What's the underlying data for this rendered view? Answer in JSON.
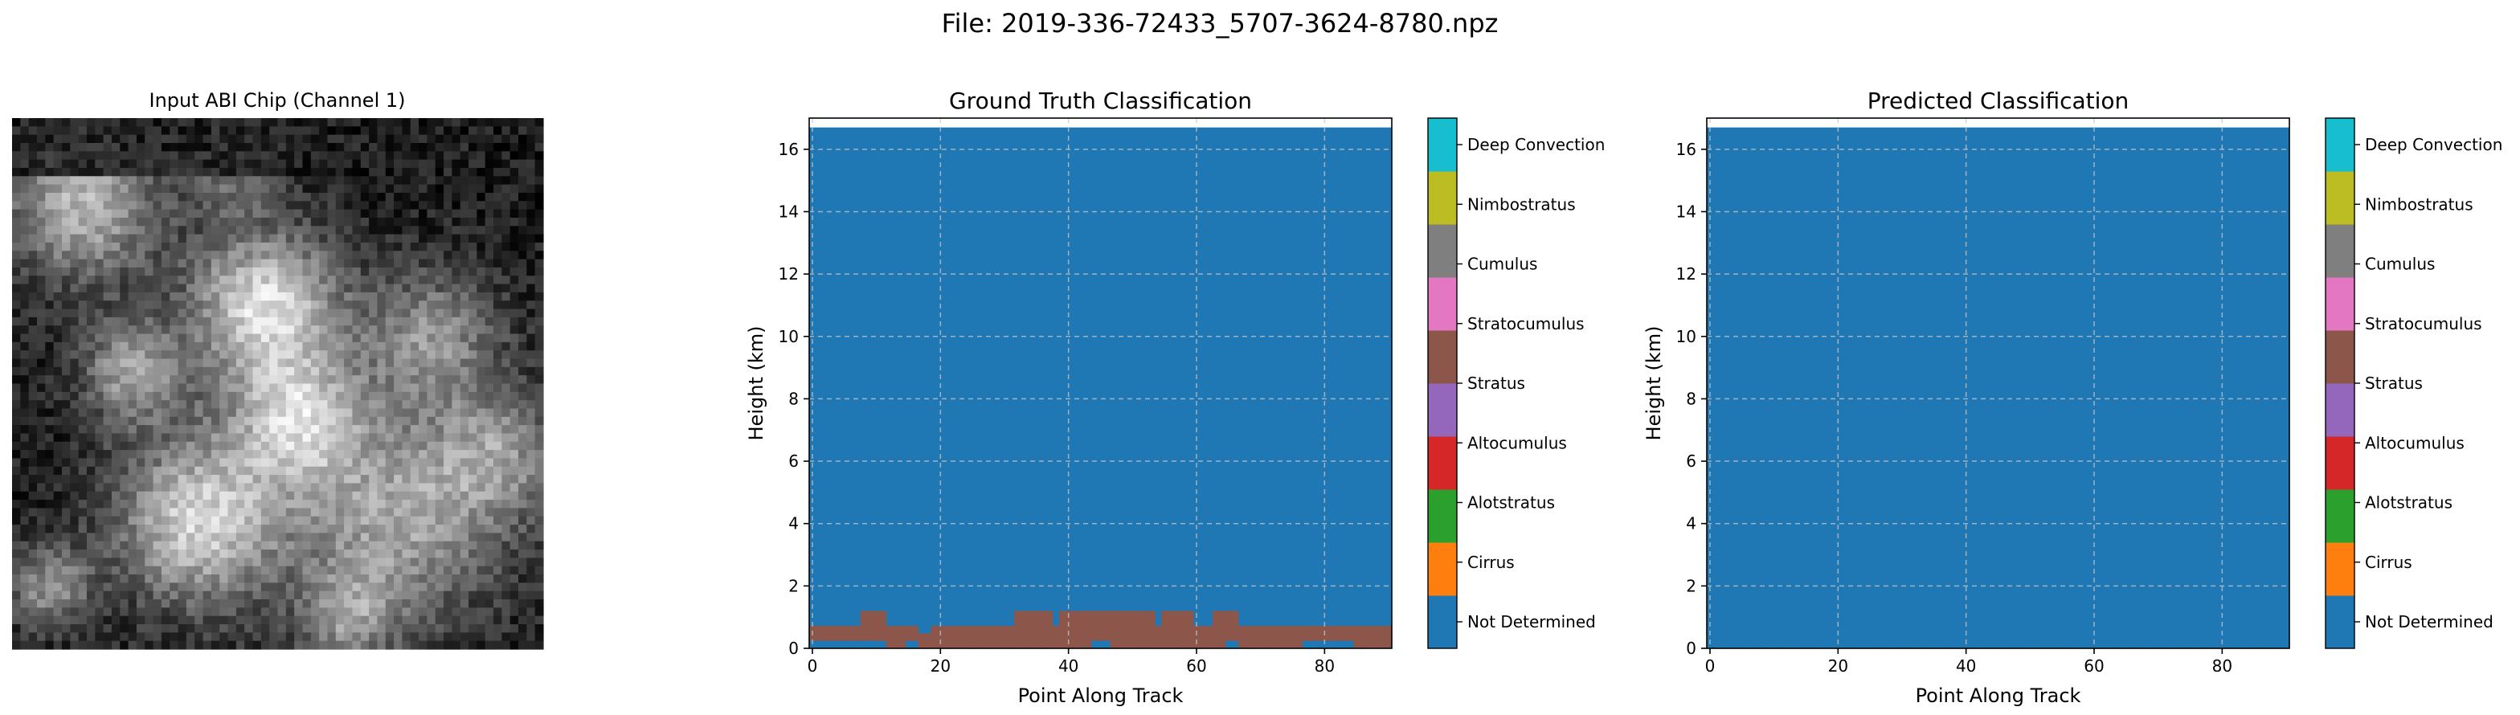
{
  "figure_title": "File: 2019-336-72433_5707-3624-8780.npz",
  "image_panel": {
    "title": "Input ABI Chip (Channel 1)",
    "grid_size": 64
  },
  "class_colors": [
    "#1f77b4",
    "#ff7f0e",
    "#2ca02c",
    "#d62728",
    "#9467bd",
    "#8c564b",
    "#e377c2",
    "#7f7f7f",
    "#bcbd22",
    "#17becf"
  ],
  "chart_data": [
    {
      "type": "heatmap",
      "title": "Ground Truth Classification",
      "xlabel": "Point Along Track",
      "ylabel": "Height (km)",
      "xlim": [
        -0.5,
        90.5
      ],
      "ylim": [
        0,
        17
      ],
      "data_top": 16.7,
      "xticks": [
        0,
        20,
        40,
        60,
        80
      ],
      "yticks": [
        0,
        2,
        4,
        6,
        8,
        10,
        12,
        14,
        16
      ],
      "grid": true,
      "background_class": "Not Determined",
      "stratocumulus_layer": {
        "class": "Stratocumulus",
        "cells": [
          {
            "x": [
              0,
              7
            ],
            "top": 0.72,
            "bottom": 0.24
          },
          {
            "x": [
              8,
              11
            ],
            "top": 1.2,
            "bottom": 0.24
          },
          {
            "x": [
              12,
              14
            ],
            "top": 0.72,
            "bottom": 0.0
          },
          {
            "x": [
              15,
              16
            ],
            "top": 0.72,
            "bottom": 0.24
          },
          {
            "x": [
              17,
              18
            ],
            "top": 0.48,
            "bottom": 0.0
          },
          {
            "x": [
              19,
              31
            ],
            "top": 0.72,
            "bottom": 0.0
          },
          {
            "x": [
              32,
              37
            ],
            "top": 1.2,
            "bottom": 0.0
          },
          {
            "x": [
              38,
              38
            ],
            "top": 0.72,
            "bottom": 0.0
          },
          {
            "x": [
              39,
              43
            ],
            "top": 1.2,
            "bottom": 0.0
          },
          {
            "x": [
              44,
              46
            ],
            "top": 1.2,
            "bottom": 0.24
          },
          {
            "x": [
              47,
              53
            ],
            "top": 1.2,
            "bottom": 0.0
          },
          {
            "x": [
              54,
              54
            ],
            "top": 0.72,
            "bottom": 0.0
          },
          {
            "x": [
              55,
              59
            ],
            "top": 1.2,
            "bottom": 0.0
          },
          {
            "x": [
              60,
              62
            ],
            "top": 0.72,
            "bottom": 0.0
          },
          {
            "x": [
              63,
              64
            ],
            "top": 1.2,
            "bottom": 0.0
          },
          {
            "x": [
              65,
              66
            ],
            "top": 1.2,
            "bottom": 0.24
          },
          {
            "x": [
              67,
              76
            ],
            "top": 0.72,
            "bottom": 0.0
          },
          {
            "x": [
              77,
              84
            ],
            "top": 0.72,
            "bottom": 0.24
          },
          {
            "x": [
              85,
              90
            ],
            "top": 0.72,
            "bottom": 0.0
          }
        ]
      }
    },
    {
      "type": "heatmap",
      "title": "Predicted Classification",
      "xlabel": "Point Along Track",
      "ylabel": "Height (km)",
      "xlim": [
        -0.5,
        90.5
      ],
      "ylim": [
        0,
        17
      ],
      "data_top": 16.7,
      "xticks": [
        0,
        20,
        40,
        60,
        80
      ],
      "yticks": [
        0,
        2,
        4,
        6,
        8,
        10,
        12,
        14,
        16
      ],
      "grid": true,
      "background_class": "Not Determined"
    }
  ],
  "colorbar_labels": [
    "Not Determined",
    "Cirrus",
    "Alotstratus",
    "Altocumulus",
    "Stratus",
    "Stratocumulus",
    "Cumulus",
    "Nimbostratus",
    "Deep Convection"
  ],
  "colorbar_top_label": "Deep Convection"
}
